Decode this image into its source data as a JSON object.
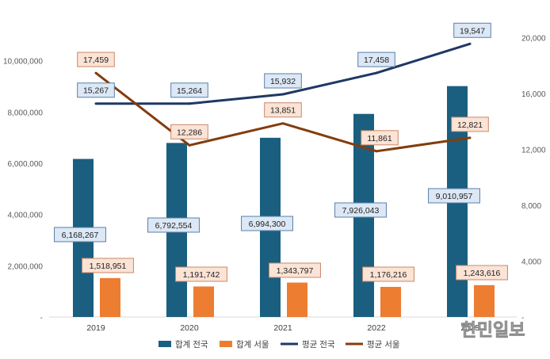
{
  "chart_data": {
    "type": "bar",
    "categories": [
      "2019",
      "2020",
      "2021",
      "2022",
      "2023"
    ],
    "series": [
      {
        "name": "합계 전국",
        "kind": "bar",
        "axis": "left",
        "color": "#1a5f80",
        "values": [
          6168267,
          6792554,
          6994300,
          7926043,
          9010957
        ],
        "labels": [
          "6,168,267",
          "6,792,554",
          "6,994,300",
          "7,926,043",
          "9,010,957"
        ]
      },
      {
        "name": "합계 서울",
        "kind": "bar",
        "axis": "left",
        "color": "#ed7d31",
        "values": [
          1518951,
          1191742,
          1343797,
          1176216,
          1243616
        ],
        "labels": [
          "1,518,951",
          "1,191,742",
          "1,343,797",
          "1,176,216",
          "1,243,616"
        ]
      },
      {
        "name": "평균 전국",
        "kind": "line",
        "axis": "right",
        "color": "#1f3864",
        "values": [
          15267,
          15264,
          15932,
          17458,
          19547
        ],
        "labels": [
          "15,267",
          "15,264",
          "15,932",
          "17,458",
          "19,547"
        ]
      },
      {
        "name": "평균 서울",
        "kind": "line",
        "axis": "right",
        "color": "#843c0c",
        "values": [
          17459,
          12286,
          13851,
          11861,
          12821
        ],
        "labels": [
          "17,459",
          "12,286",
          "13,851",
          "11,861",
          "12,821"
        ]
      }
    ],
    "y_left": {
      "range": [
        0,
        12000000
      ],
      "ticks": [
        "-",
        "2,000,000",
        "4,000,000",
        "6,000,000",
        "8,000,000",
        "10,000,000"
      ]
    },
    "y_right": {
      "range": [
        0,
        22000
      ],
      "ticks": [
        "-",
        "4,000",
        "8,000",
        "12,000",
        "16,000",
        "20,000"
      ]
    },
    "grid": false,
    "legend_position": "bottom"
  },
  "watermark": "한민일보"
}
